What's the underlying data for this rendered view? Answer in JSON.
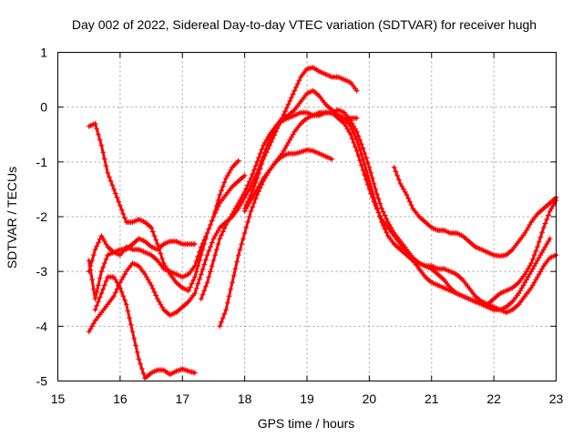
{
  "chart_data": {
    "type": "scatter",
    "title": "Day 002 of 2022, Sidereal Day-to-day VTEC variation (SDTVAR) for receiver hugh",
    "xlabel": "GPS time / hours",
    "ylabel": "SDTVAR / TECUs",
    "xlim": [
      15,
      23
    ],
    "ylim": [
      -5,
      1
    ],
    "xticks": [
      15,
      16,
      17,
      18,
      19,
      20,
      21,
      22,
      23
    ],
    "yticks": [
      -5,
      -4,
      -3,
      -2,
      -1,
      0,
      1
    ],
    "grid": true,
    "marker": "+",
    "color": "#ff0000",
    "series": [
      {
        "name": "s1",
        "x": [
          15.5,
          15.6,
          15.7,
          15.8,
          15.9,
          16.0,
          16.1,
          16.2,
          16.3,
          16.4,
          16.5,
          16.6,
          16.7,
          16.8,
          16.9,
          17.0,
          17.1,
          17.2,
          17.3,
          17.4,
          17.5,
          17.6,
          17.7,
          17.8,
          17.9,
          18.0
        ],
        "y": [
          -0.35,
          -0.3,
          -0.7,
          -1.2,
          -1.5,
          -1.8,
          -2.1,
          -2.1,
          -2.05,
          -2.1,
          -2.2,
          -2.5,
          -2.85,
          -3.05,
          -3.2,
          -3.3,
          -3.35,
          -3.1,
          -2.7,
          -2.3,
          -2.0,
          -1.75,
          -1.6,
          -1.45,
          -1.35,
          -1.25
        ]
      },
      {
        "name": "s2",
        "x": [
          15.5,
          15.6,
          15.7,
          15.8,
          15.9,
          16.0,
          16.1,
          16.2,
          16.3,
          16.4,
          16.5,
          16.6,
          16.7,
          16.8,
          16.9,
          17.0,
          17.1,
          17.2,
          17.3,
          17.4,
          17.5,
          17.6,
          17.7,
          17.8,
          17.9
        ],
        "y": [
          -3.0,
          -2.6,
          -2.35,
          -2.55,
          -2.65,
          -2.7,
          -2.55,
          -2.6,
          -2.6,
          -2.65,
          -2.7,
          -2.8,
          -2.95,
          -3.0,
          -3.05,
          -3.1,
          -3.05,
          -2.9,
          -2.55,
          -2.3,
          -2.0,
          -1.6,
          -1.3,
          -1.1,
          -0.98
        ]
      },
      {
        "name": "s3",
        "x": [
          15.5,
          15.6,
          15.7,
          15.8,
          15.9,
          16.0,
          16.1,
          16.2,
          16.3,
          16.4,
          16.5,
          16.6,
          16.7,
          16.8,
          16.9,
          17.0,
          17.1,
          17.2
        ],
        "y": [
          -2.8,
          -3.5,
          -3.0,
          -2.7,
          -2.65,
          -2.6,
          -2.6,
          -2.5,
          -2.4,
          -2.45,
          -2.55,
          -2.6,
          -2.5,
          -2.45,
          -2.45,
          -2.5,
          -2.5,
          -2.5
        ]
      },
      {
        "name": "s4",
        "x": [
          15.5,
          15.6,
          15.7,
          15.8,
          15.9,
          16.0,
          16.1,
          16.2,
          16.3,
          16.4,
          16.5,
          16.6,
          16.7,
          16.8,
          16.9,
          17.0,
          17.1,
          17.2,
          17.3,
          17.4,
          17.5,
          17.6,
          17.7,
          17.8,
          17.9,
          18.0,
          18.1,
          18.2,
          18.3,
          18.4,
          18.5,
          18.6,
          18.7,
          18.8,
          18.9,
          19.0,
          19.1,
          19.2,
          19.3,
          19.4,
          19.5,
          19.6,
          19.7,
          19.8
        ],
        "y": [
          -4.1,
          -3.9,
          -3.75,
          -3.6,
          -3.45,
          -3.2,
          -3.0,
          -2.85,
          -2.9,
          -3.05,
          -3.25,
          -3.5,
          -3.7,
          -3.8,
          -3.75,
          -3.65,
          -3.55,
          -3.4,
          -3.05,
          -2.7,
          -2.4,
          -2.2,
          -2.1,
          -2.0,
          -1.85,
          -1.65,
          -1.45,
          -1.2,
          -0.9,
          -0.6,
          -0.35,
          -0.2,
          -0.15,
          -0.05,
          0.1,
          0.25,
          0.3,
          0.2,
          0.05,
          -0.05,
          -0.15,
          -0.2,
          -0.2,
          -0.2
        ]
      },
      {
        "name": "s5",
        "x": [
          15.6,
          15.7,
          15.8,
          15.9,
          16.0,
          16.1,
          16.2,
          16.3,
          16.4,
          16.5,
          16.6,
          16.7,
          16.8,
          16.9,
          17.0,
          17.1,
          17.2
        ],
        "y": [
          -3.7,
          -3.4,
          -3.1,
          -3.1,
          -3.3,
          -3.6,
          -4.1,
          -4.6,
          -4.95,
          -4.85,
          -4.8,
          -4.8,
          -4.88,
          -4.82,
          -4.78,
          -4.82,
          -4.85
        ]
      },
      {
        "name": "s6",
        "x": [
          17.6,
          17.7,
          17.8,
          17.9,
          18.0,
          18.1,
          18.2,
          18.3,
          18.4,
          18.5,
          18.6,
          18.7,
          18.8,
          18.9,
          19.0,
          19.1,
          19.2,
          19.3,
          19.4,
          19.5,
          19.6,
          19.7,
          19.8,
          19.9,
          20.0,
          20.1,
          20.2,
          20.3,
          20.4,
          20.5,
          20.6,
          20.7,
          20.8,
          20.9,
          21.0,
          21.1,
          21.2,
          21.3,
          21.4,
          21.5,
          21.6,
          21.7,
          21.8,
          21.9,
          22.0,
          22.1,
          22.2,
          22.3,
          22.4,
          22.5,
          22.6,
          22.7,
          22.8,
          22.9
        ],
        "y": [
          -4.0,
          -3.7,
          -3.2,
          -2.7,
          -2.3,
          -1.9,
          -1.6,
          -1.35,
          -1.15,
          -1.0,
          -0.85,
          -0.65,
          -0.45,
          -0.3,
          -0.2,
          -0.15,
          -0.1,
          -0.1,
          -0.1,
          -0.15,
          -0.2,
          -0.35,
          -0.6,
          -0.95,
          -1.35,
          -1.75,
          -2.1,
          -2.35,
          -2.5,
          -2.6,
          -2.7,
          -2.8,
          -2.85,
          -2.9,
          -2.95,
          -3.05,
          -3.15,
          -3.3,
          -3.4,
          -3.45,
          -3.5,
          -3.55,
          -3.6,
          -3.65,
          -3.7,
          -3.7,
          -3.65,
          -3.55,
          -3.4,
          -3.2,
          -3.0,
          -2.8,
          -2.6,
          -2.4
        ]
      },
      {
        "name": "s7",
        "x": [
          17.3,
          17.4,
          17.5,
          17.6,
          17.7,
          17.8,
          17.9,
          18.0,
          18.1,
          18.2,
          18.3,
          18.4,
          18.5,
          18.6,
          18.7,
          18.8,
          18.9,
          19.0,
          19.1,
          19.2,
          19.3,
          19.4,
          19.5,
          19.6,
          19.7,
          19.8,
          19.9,
          20.0,
          20.1,
          20.2,
          20.3,
          20.4,
          20.5,
          20.6,
          20.7,
          20.8,
          20.9,
          21.0,
          21.1,
          21.2,
          21.3,
          21.4,
          21.5,
          21.6,
          21.7,
          21.8,
          21.9,
          22.0,
          22.1,
          22.2,
          22.3,
          22.4,
          22.5,
          22.6,
          22.7,
          22.8,
          22.9,
          23.0
        ],
        "y": [
          -3.5,
          -3.2,
          -2.8,
          -2.4,
          -2.15,
          -1.95,
          -1.75,
          -1.55,
          -1.3,
          -1.0,
          -0.7,
          -0.5,
          -0.35,
          -0.25,
          -0.2,
          -0.15,
          -0.1,
          -0.1,
          -0.15,
          -0.15,
          -0.1,
          -0.1,
          -0.2,
          -0.3,
          -0.5,
          -0.8,
          -1.15,
          -1.5,
          -1.8,
          -2.05,
          -2.2,
          -2.35,
          -2.5,
          -2.65,
          -2.8,
          -2.95,
          -3.1,
          -3.2,
          -3.25,
          -3.3,
          -3.35,
          -3.4,
          -3.45,
          -3.5,
          -3.55,
          -3.55,
          -3.6,
          -3.65,
          -3.7,
          -3.75,
          -3.7,
          -3.6,
          -3.45,
          -3.3,
          -3.1,
          -2.9,
          -2.75,
          -2.7
        ]
      },
      {
        "name": "s8",
        "x": [
          18.0,
          18.1,
          18.2,
          18.3,
          18.4,
          18.5,
          18.6,
          18.7,
          18.8,
          18.9,
          19.0,
          19.1,
          19.2,
          19.3,
          19.4,
          19.5,
          19.6,
          19.7,
          19.8
        ],
        "y": [
          -1.85,
          -1.6,
          -1.3,
          -0.95,
          -0.7,
          -0.45,
          -0.2,
          0.05,
          0.3,
          0.55,
          0.7,
          0.72,
          0.65,
          0.6,
          0.55,
          0.55,
          0.5,
          0.45,
          0.3
        ]
      },
      {
        "name": "s9",
        "x": [
          18.0,
          18.1,
          18.2,
          18.3,
          18.4,
          18.5,
          18.6,
          18.7,
          18.8,
          18.9,
          19.0,
          19.1,
          19.2,
          19.3,
          19.4
        ],
        "y": [
          -1.9,
          -1.7,
          -1.5,
          -1.3,
          -1.15,
          -1.0,
          -0.9,
          -0.85,
          -0.85,
          -0.82,
          -0.78,
          -0.8,
          -0.85,
          -0.9,
          -0.95
        ]
      },
      {
        "name": "s10",
        "x": [
          19.4,
          19.5,
          19.6,
          19.7,
          19.8,
          19.9,
          20.0,
          20.1,
          20.2,
          20.3,
          20.4,
          20.5,
          20.6,
          20.7,
          20.8,
          20.9,
          21.0,
          21.1,
          21.2,
          21.3,
          21.4,
          21.5,
          21.6,
          21.7,
          21.8,
          21.9,
          22.0,
          22.1,
          22.2,
          22.3,
          22.4,
          22.5,
          22.6,
          22.7,
          22.8,
          22.9,
          23.0
        ],
        "y": [
          -0.1,
          -0.05,
          -0.1,
          -0.25,
          -0.45,
          -0.75,
          -1.1,
          -1.5,
          -1.85,
          -2.1,
          -2.3,
          -2.45,
          -2.6,
          -2.75,
          -2.85,
          -2.9,
          -2.9,
          -2.95,
          -2.95,
          -3.0,
          -3.05,
          -3.15,
          -3.3,
          -3.45,
          -3.55,
          -3.6,
          -3.5,
          -3.4,
          -3.35,
          -3.3,
          -3.2,
          -3.05,
          -2.85,
          -2.55,
          -2.2,
          -1.9,
          -1.7
        ]
      },
      {
        "name": "s11",
        "x": [
          20.4,
          20.5,
          20.6,
          20.7,
          20.8,
          20.9,
          21.0,
          21.1,
          21.2,
          21.3,
          21.4,
          21.5,
          21.6,
          21.7,
          21.8,
          21.9,
          22.0,
          22.1,
          22.2,
          22.3,
          22.4,
          22.5,
          22.6,
          22.7,
          22.8,
          22.9,
          23.0
        ],
        "y": [
          -1.1,
          -1.4,
          -1.6,
          -1.85,
          -2.0,
          -2.1,
          -2.2,
          -2.25,
          -2.25,
          -2.3,
          -2.3,
          -2.35,
          -2.45,
          -2.55,
          -2.6,
          -2.65,
          -2.7,
          -2.72,
          -2.7,
          -2.6,
          -2.45,
          -2.3,
          -2.1,
          -1.95,
          -1.85,
          -1.75,
          -1.65
        ]
      }
    ]
  }
}
